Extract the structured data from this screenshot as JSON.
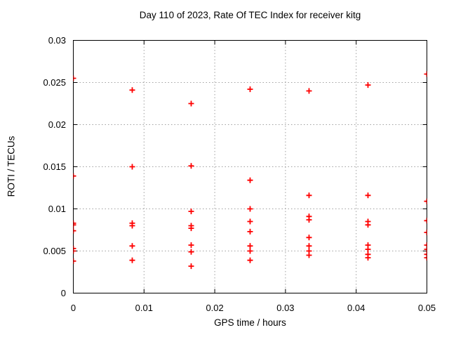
{
  "title": "Day 110 of 2023, Rate Of TEC Index for receiver kitg",
  "colors": {
    "marker": "#ff0000",
    "grid": "#a0a0a0",
    "axis": "#000000",
    "text": "#000000",
    "background": "#ffffff"
  },
  "chart_data": {
    "type": "scatter",
    "title": "Day 110 of 2023, Rate Of TEC Index for receiver kitg",
    "xlabel": "GPS time / hours",
    "ylabel": "ROTI / TECUs",
    "xlim": [
      0,
      0.05
    ],
    "ylim": [
      0,
      0.03
    ],
    "xticks": [
      0,
      0.01,
      0.02,
      0.03,
      0.04,
      0.05
    ],
    "xtick_labels": [
      "0",
      "0.01",
      "0.02",
      "0.03",
      "0.04",
      "0.05"
    ],
    "yticks": [
      0,
      0.005,
      0.01,
      0.015,
      0.02,
      0.025,
      0.03
    ],
    "ytick_labels": [
      "0",
      "0.005",
      "0.01",
      "0.015",
      "0.02",
      "0.025",
      "0.03"
    ],
    "grid": true,
    "legend_position": "none",
    "marker_style": "plus",
    "series": [
      {
        "name": "ROTI",
        "points": [
          [
            0,
            0.0255
          ],
          [
            0,
            0.0139
          ],
          [
            0,
            0.0083
          ],
          [
            0,
            0.0081
          ],
          [
            0,
            0.0074
          ],
          [
            0,
            0.0053
          ],
          [
            0,
            0.005
          ],
          [
            0,
            0.0038
          ],
          [
            0.008333,
            0.0241
          ],
          [
            0.008333,
            0.015
          ],
          [
            0.008333,
            0.0083
          ],
          [
            0.008333,
            0.008
          ],
          [
            0.008333,
            0.0056
          ],
          [
            0.008333,
            0.0039
          ],
          [
            0.016667,
            0.0225
          ],
          [
            0.016667,
            0.0151
          ],
          [
            0.016667,
            0.0097
          ],
          [
            0.016667,
            0.008
          ],
          [
            0.016667,
            0.0077
          ],
          [
            0.016667,
            0.0057
          ],
          [
            0.016667,
            0.0049
          ],
          [
            0.016667,
            0.0032
          ],
          [
            0.025,
            0.0242
          ],
          [
            0.025,
            0.0134
          ],
          [
            0.025,
            0.01
          ],
          [
            0.025,
            0.0085
          ],
          [
            0.025,
            0.0073
          ],
          [
            0.025,
            0.0056
          ],
          [
            0.025,
            0.005
          ],
          [
            0.025,
            0.0039
          ],
          [
            0.033333,
            0.024
          ],
          [
            0.033333,
            0.0116
          ],
          [
            0.033333,
            0.0091
          ],
          [
            0.033333,
            0.0087
          ],
          [
            0.033333,
            0.0066
          ],
          [
            0.033333,
            0.0056
          ],
          [
            0.033333,
            0.005
          ],
          [
            0.033333,
            0.0045
          ],
          [
            0.041667,
            0.0247
          ],
          [
            0.041667,
            0.0116
          ],
          [
            0.041667,
            0.0085
          ],
          [
            0.041667,
            0.0081
          ],
          [
            0.041667,
            0.0057
          ],
          [
            0.041667,
            0.0052
          ],
          [
            0.041667,
            0.0046
          ],
          [
            0.041667,
            0.0042
          ],
          [
            0.05,
            0.026
          ],
          [
            0.05,
            0.0109
          ],
          [
            0.05,
            0.0086
          ],
          [
            0.05,
            0.0072
          ],
          [
            0.05,
            0.0057
          ],
          [
            0.05,
            0.0052
          ],
          [
            0.05,
            0.0046
          ],
          [
            0.05,
            0.0042
          ]
        ]
      }
    ]
  }
}
